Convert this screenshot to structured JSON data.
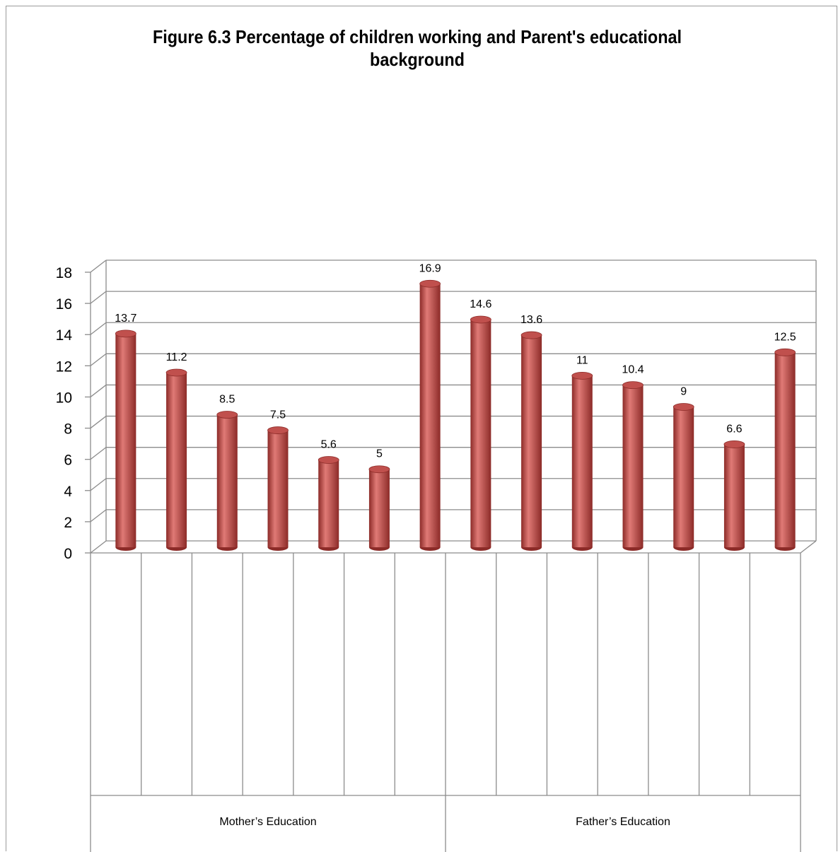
{
  "chart_data": {
    "type": "bar",
    "title": "Figure 6.3 Percentage of children working and Parent's educational background",
    "categories": [
      "",
      "",
      "",
      "",
      "",
      "",
      "",
      "",
      "",
      "",
      "",
      "",
      "",
      ""
    ],
    "groups": [
      "Mother’s Education",
      "Father’s Education"
    ],
    "group_sizes": [
      7,
      7
    ],
    "values": [
      13.7,
      11.2,
      8.5,
      7.5,
      5.6,
      5,
      16.9,
      14.6,
      13.6,
      11,
      10.4,
      9,
      6.6,
      12.5
    ],
    "data_labels": [
      "13.7",
      "11.2",
      "8.5",
      "7.5",
      "5.6",
      "5",
      "16.9",
      "14.6",
      "13.6",
      "11",
      "10.4",
      "9",
      "6.6",
      "12.5"
    ],
    "show_labels": [
      true,
      true,
      true,
      true,
      true,
      true,
      true,
      true,
      true,
      true,
      true,
      true,
      true,
      true
    ],
    "ylim": [
      0,
      18
    ],
    "yticks": [
      "0",
      "2",
      "4",
      "6",
      "8",
      "10",
      "12",
      "14",
      "16",
      "18"
    ],
    "grid": true,
    "bar_color": "#c0504d",
    "bar_highlight": "#e07a76",
    "bar_shadow": "#8c2b28"
  }
}
